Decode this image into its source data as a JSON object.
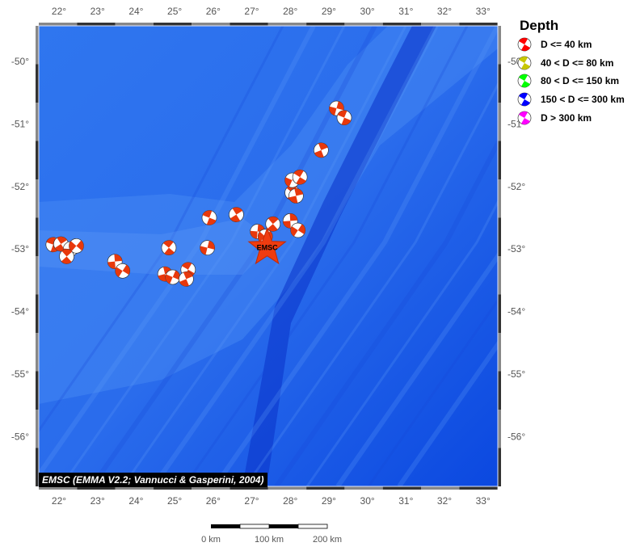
{
  "legend": {
    "title": "Depth",
    "items": [
      {
        "label": "D <= 40 km",
        "color": "#ff0000"
      },
      {
        "label": "40 < D <= 80 km",
        "color": "#c8c800"
      },
      {
        "label": "80 < D <= 150 km",
        "color": "#00ff00"
      },
      {
        "label": "150 < D <= 300 km",
        "color": "#0000ff"
      },
      {
        "label": "D > 300 km",
        "color": "#ff00ff"
      }
    ]
  },
  "credit": "EMSC (EMMA V2.2; Vannucci & Gasperini, 2004)",
  "epicenter_label": "EMSC",
  "epicenter": {
    "lon": 27.4,
    "lat": -52.98
  },
  "map": {
    "lon_range": [
      21.5,
      33.3
    ],
    "lat_range": [
      -56.5,
      -49.4
    ],
    "lon_ticks": [
      "22°",
      "23°",
      "24°",
      "25°",
      "26°",
      "27°",
      "28°",
      "29°",
      "30°",
      "31°",
      "32°",
      "33°"
    ],
    "lat_ticks": [
      "-50°",
      "-51°",
      "-52°",
      "-53°",
      "-54°",
      "-55°",
      "-56°"
    ],
    "ocean_colors": [
      "#1f5fe8",
      "#3a7df2",
      "#0a3fd6"
    ],
    "mechanism_color": "#e8380c"
  },
  "scale_bar": {
    "labels": [
      "0 km",
      "100 km",
      "200 km"
    ]
  },
  "events": [
    {
      "lon": 21.85,
      "lat": -52.93
    },
    {
      "lon": 22.05,
      "lat": -52.92
    },
    {
      "lon": 22.3,
      "lat": -53.0
    },
    {
      "lon": 22.45,
      "lat": -52.95
    },
    {
      "lon": 22.2,
      "lat": -53.12
    },
    {
      "lon": 23.45,
      "lat": -53.2
    },
    {
      "lon": 23.65,
      "lat": -53.35
    },
    {
      "lon": 24.85,
      "lat": -52.98
    },
    {
      "lon": 24.75,
      "lat": -53.4
    },
    {
      "lon": 24.95,
      "lat": -53.45
    },
    {
      "lon": 25.35,
      "lat": -53.33
    },
    {
      "lon": 25.3,
      "lat": -53.48
    },
    {
      "lon": 25.85,
      "lat": -52.98
    },
    {
      "lon": 25.9,
      "lat": -52.5
    },
    {
      "lon": 26.6,
      "lat": -52.45
    },
    {
      "lon": 27.15,
      "lat": -52.72
    },
    {
      "lon": 27.35,
      "lat": -52.8
    },
    {
      "lon": 27.55,
      "lat": -52.6
    },
    {
      "lon": 28.0,
      "lat": -52.55
    },
    {
      "lon": 28.2,
      "lat": -52.7
    },
    {
      "lon": 28.05,
      "lat": -52.1
    },
    {
      "lon": 28.15,
      "lat": -52.15
    },
    {
      "lon": 28.05,
      "lat": -51.9
    },
    {
      "lon": 28.25,
      "lat": -51.85
    },
    {
      "lon": 28.8,
      "lat": -51.42
    },
    {
      "lon": 29.2,
      "lat": -50.75
    },
    {
      "lon": 29.4,
      "lat": -50.9
    }
  ]
}
